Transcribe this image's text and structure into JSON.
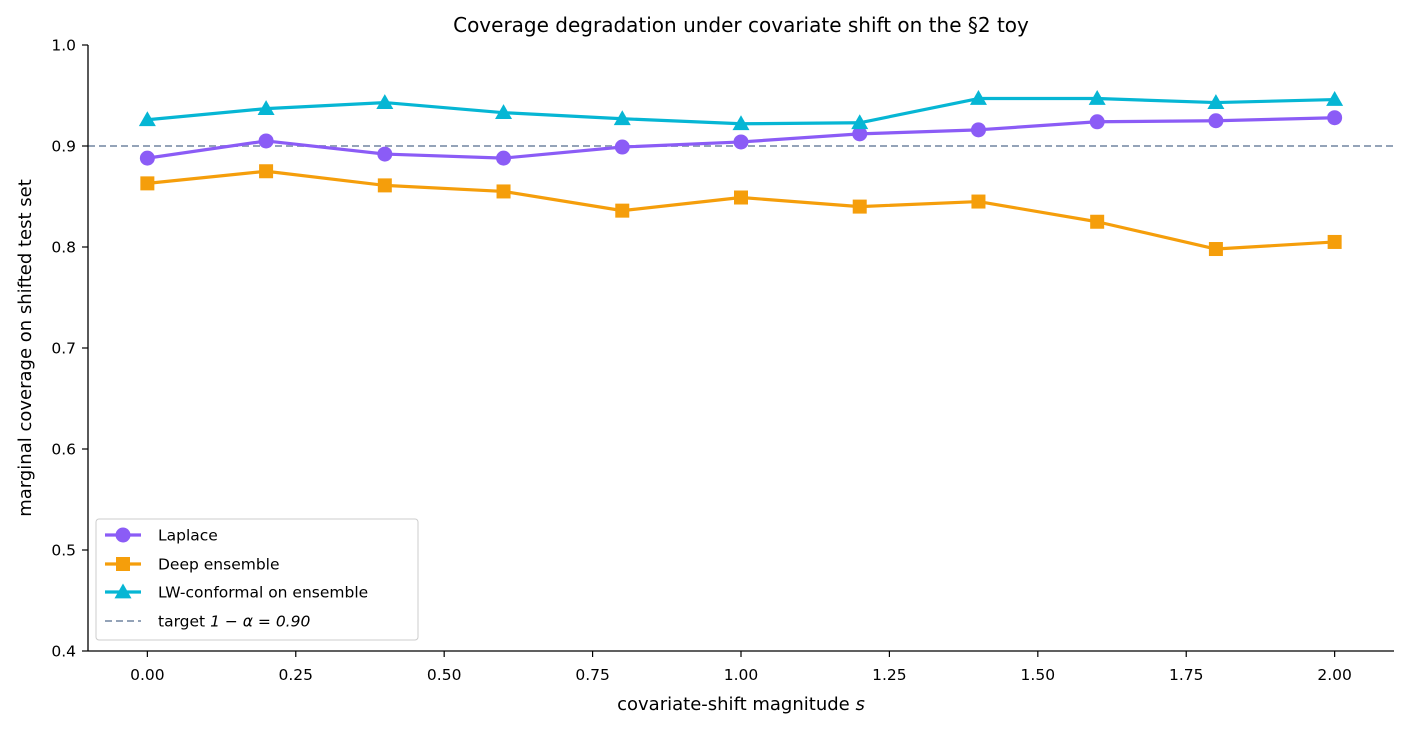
{
  "chart_data": {
    "type": "line",
    "title": "Coverage degradation under covariate shift on the §2 toy",
    "xlabel": "covariate-shift magnitude",
    "xlabel_var": "s",
    "ylabel": "marginal coverage on shifted test set",
    "xlim": [
      -0.1,
      2.1
    ],
    "ylim": [
      0.4,
      1.0
    ],
    "xticks": [
      0.0,
      0.25,
      0.5,
      0.75,
      1.0,
      1.25,
      1.5,
      1.75,
      2.0
    ],
    "xtick_labels": [
      "0.00",
      "0.25",
      "0.50",
      "0.75",
      "1.00",
      "1.25",
      "1.50",
      "1.75",
      "2.00"
    ],
    "yticks": [
      0.4,
      0.5,
      0.6,
      0.7,
      0.8,
      0.9,
      1.0
    ],
    "ytick_labels": [
      "0.4",
      "0.5",
      "0.6",
      "0.7",
      "0.8",
      "0.9",
      "1.0"
    ],
    "x": [
      0.0,
      0.2,
      0.4,
      0.6,
      0.8,
      1.0,
      1.2,
      1.4,
      1.6,
      1.8,
      2.0
    ],
    "series": [
      {
        "name": "Laplace",
        "color": "#8b5cf6",
        "marker": "circle",
        "values": [
          0.888,
          0.905,
          0.892,
          0.888,
          0.899,
          0.904,
          0.912,
          0.916,
          0.924,
          0.925,
          0.928
        ]
      },
      {
        "name": "Deep ensemble",
        "color": "#f59e0b",
        "marker": "square",
        "values": [
          0.863,
          0.875,
          0.861,
          0.855,
          0.836,
          0.849,
          0.84,
          0.845,
          0.825,
          0.798,
          0.805
        ]
      },
      {
        "name": "LW-conformal on ensemble",
        "color": "#06b6d4",
        "marker": "triangle",
        "values": [
          0.926,
          0.937,
          0.943,
          0.933,
          0.927,
          0.922,
          0.923,
          0.947,
          0.947,
          0.943,
          0.946
        ]
      }
    ],
    "reference_line": {
      "label_prefix": "target ",
      "label_math": "1 − α = 0.90",
      "value": 0.9,
      "color": "#94a3b8",
      "style": "dashed"
    },
    "legend_placement": "lower-left",
    "grid": false
  }
}
